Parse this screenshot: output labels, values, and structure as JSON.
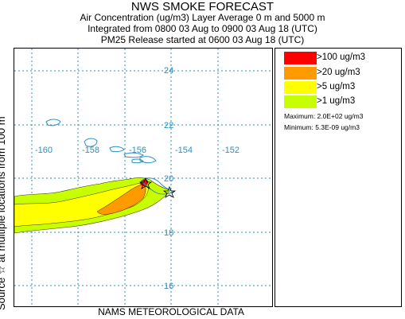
{
  "header": {
    "title": "NWS SMOKE FORECAST",
    "line2": "Air Concentration (ug/m3) Layer Average    0 m and  5000 m",
    "line3": "Integrated from 0800 03 Aug to 0900 03 Aug 18 (UTC)",
    "line4": "PM25 Release started at 0600 03 Aug 18 (UTC)"
  },
  "map": {
    "lat_labels": [
      "24",
      "22",
      "20",
      "18",
      "16"
    ],
    "lon_labels": [
      "-160",
      "-158",
      "-156",
      "-154",
      "-152"
    ],
    "gridline_color": "#2b8fc1",
    "coastline_color": "#2b8fc1"
  },
  "legend": {
    "items": [
      {
        "label": ">100 ug/m3",
        "color": "#ff0000"
      },
      {
        "label": ">20 ug/m3",
        "color": "#ff9a00"
      },
      {
        "label": ">5 ug/m3",
        "color": "#ffff00"
      },
      {
        "label": ">1 ug/m3",
        "color": "#c8ff00"
      }
    ],
    "maximum": "Maximum: 2.0E+02 ug/m3",
    "minimum": "Minimum: 5.3E-09 ug/m3"
  },
  "side_label": "Source ☆   at multiple locations   from   100 m",
  "bottom_label": "NAMS METEOROLOGICAL DATA"
}
